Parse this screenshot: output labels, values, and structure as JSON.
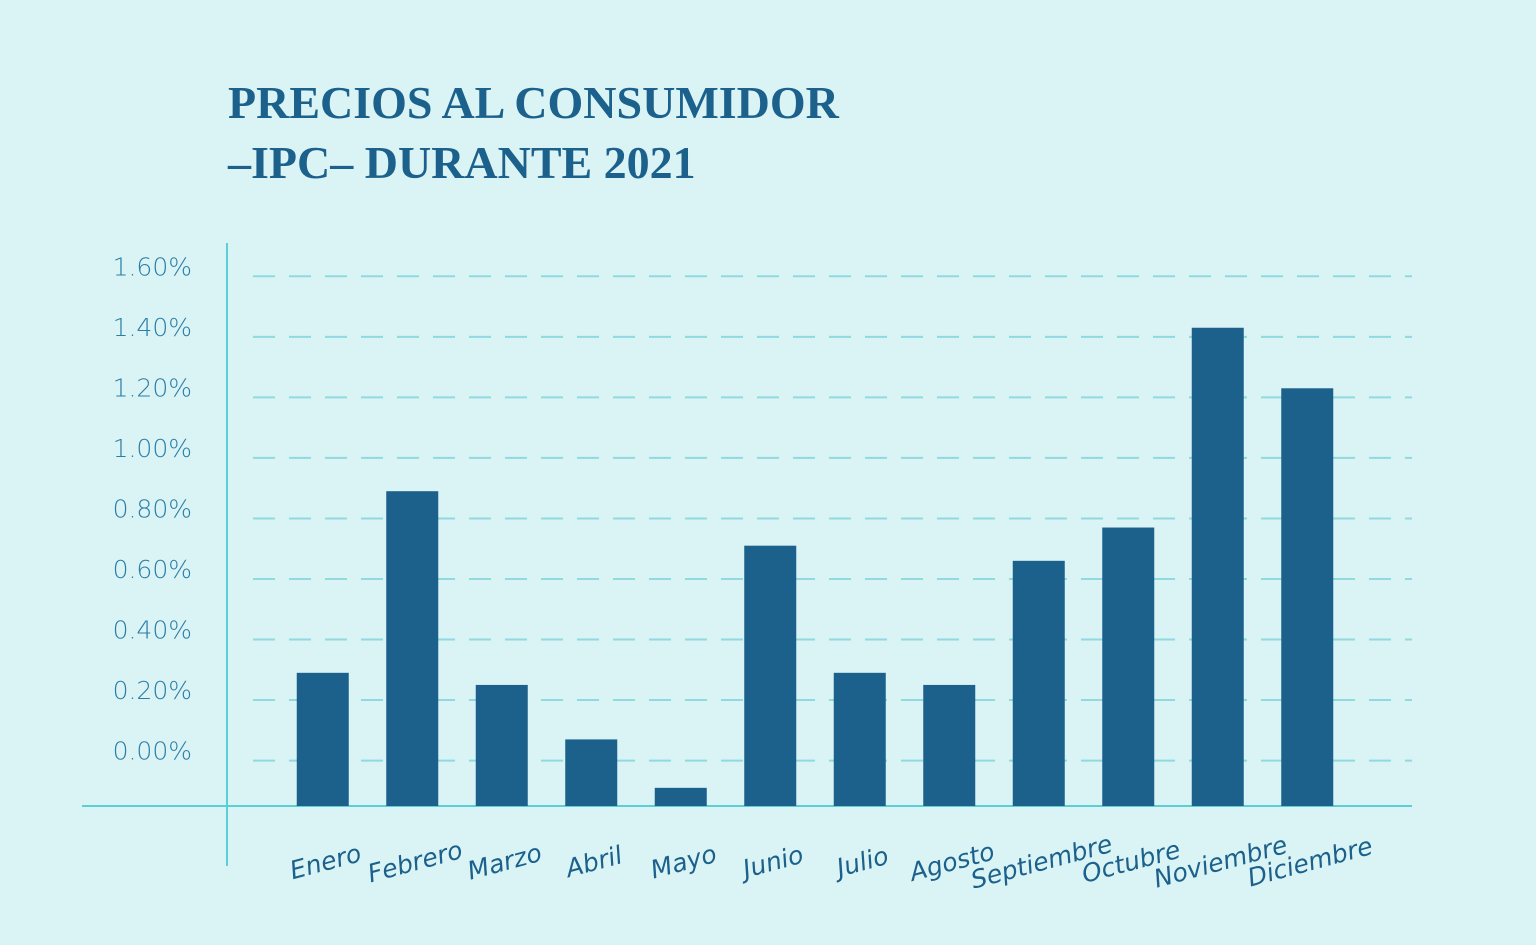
{
  "chart_data": {
    "type": "bar",
    "title": [
      "PRECIOS AL CONSUMIDOR",
      "–IPC– DURANTE 2021"
    ],
    "categories": [
      "Enero",
      "Febrero",
      "Marzo",
      "Abril",
      "Mayo",
      "Junio",
      "Julio",
      "Agosto",
      "Septiembre",
      "Octubre",
      "Noviembre",
      "Diciembre"
    ],
    "values": [
      0.29,
      0.89,
      0.25,
      0.07,
      -0.09,
      0.71,
      0.29,
      0.25,
      0.66,
      0.77,
      1.43,
      1.23
    ],
    "color": "#1b618c",
    "ylim": [
      -0.15,
      1.71
    ],
    "yticks": [
      {
        "value": 0,
        "label": "0.00%"
      },
      {
        "value": 0.2,
        "label": "0.20%"
      },
      {
        "value": 0.4,
        "label": "0.40%"
      },
      {
        "value": 0.6,
        "label": "0.60%"
      },
      {
        "value": 0.8,
        "label": "0.80%"
      },
      {
        "value": 1,
        "label": "1.00%"
      },
      {
        "value": 1.2,
        "label": "1.20%"
      },
      {
        "value": 1.4,
        "label": "1.40%"
      },
      {
        "value": 1.6,
        "label": "1.60%"
      }
    ],
    "grid": true
  }
}
